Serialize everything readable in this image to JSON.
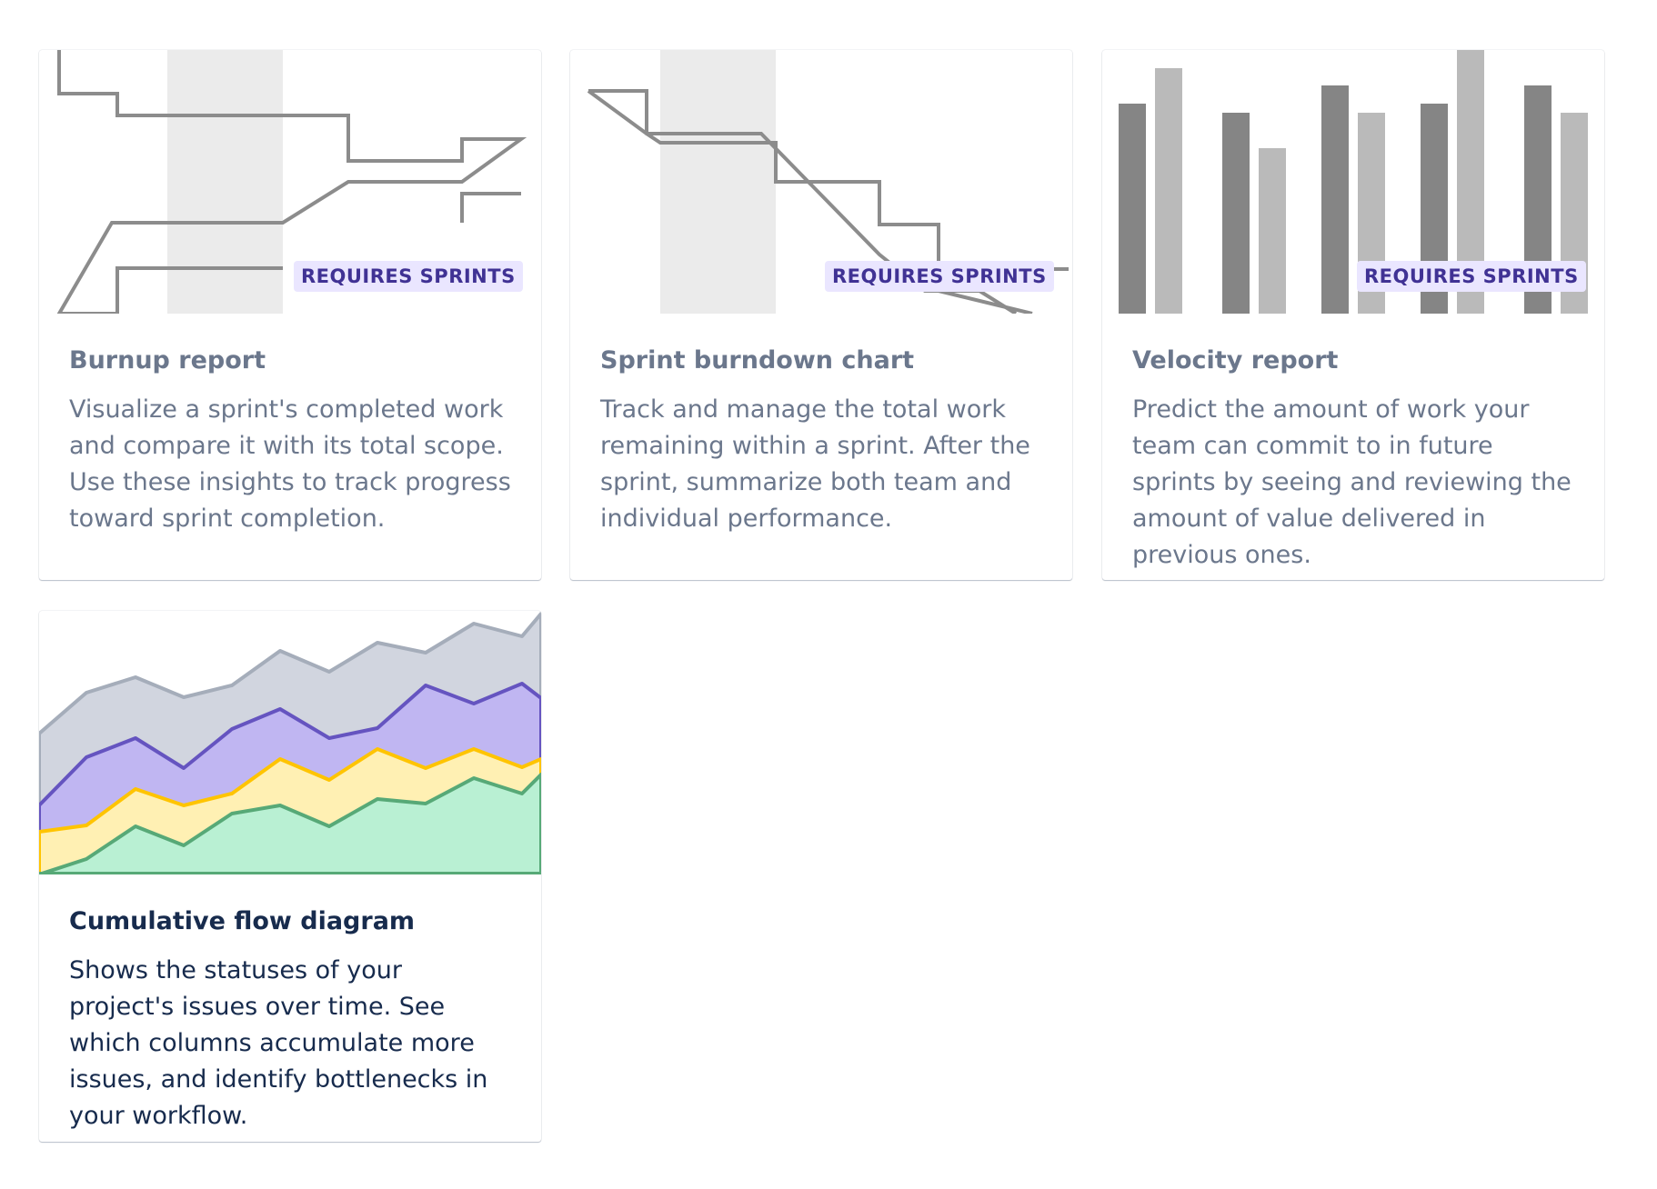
{
  "cards": [
    {
      "title": "Burnup report",
      "description": "Visualize a sprint's completed work and compare it with its total scope. Use these insights to track progress toward sprint completion.",
      "badge": "REQUIRES SPRINTS",
      "illustration": "burnup-chart-illustration",
      "disabled": true
    },
    {
      "title": "Sprint burndown chart",
      "description": "Track and manage the total work remaining within a sprint. After the sprint, summarize both team and individual performance.",
      "badge": "REQUIRES SPRINTS",
      "illustration": "burndown-chart-illustration",
      "disabled": true
    },
    {
      "title": "Velocity report",
      "description": "Predict the amount of work your team can commit to in future sprints by seeing and reviewing the amount of value delivered in previous ones.",
      "badge": "REQUIRES SPRINTS",
      "illustration": "velocity-chart-illustration",
      "disabled": true
    },
    {
      "title": "Cumulative flow diagram",
      "description": "Shows the statuses of your project's issues over time. See which columns accumulate more issues, and identify bottlenecks in your workflow.",
      "badge": "",
      "illustration": "cumulative-flow-illustration",
      "disabled": false
    }
  ],
  "colors": {
    "text_disabled": "#6b778c",
    "text_active": "#172b4d",
    "badge_bg": "#eae6ff",
    "badge_text": "#403294",
    "illustration_gray_dark": "#858585",
    "illustration_gray_light": "#bababa",
    "cfd_gray": "#a5adba",
    "cfd_purple": "#6554c0",
    "cfd_yellow": "#ffc400",
    "cfd_green": "#57d9a3"
  }
}
